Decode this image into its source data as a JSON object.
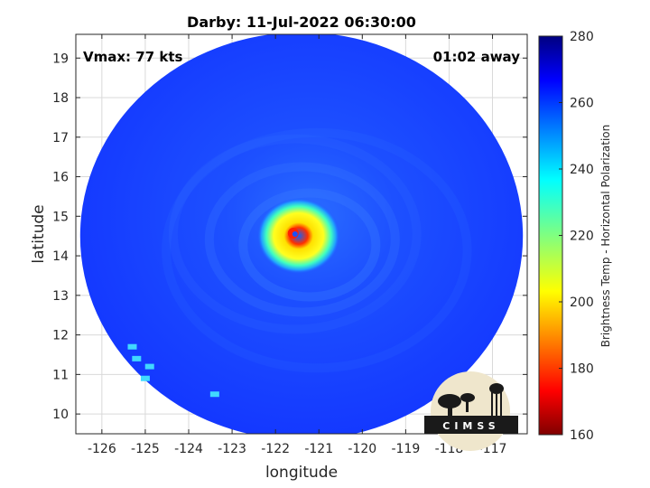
{
  "chart_data": {
    "type": "heatmap",
    "title": "Darby: 11-Jul-2022 06:30:00",
    "xlabel": "longitude",
    "ylabel": "latitude",
    "xlim": [
      -126.6,
      -116.2
    ],
    "ylim": [
      9.5,
      19.6
    ],
    "xticks": [
      -126,
      -125,
      -124,
      -123,
      -122,
      -121,
      -120,
      -119,
      -118,
      -117
    ],
    "yticks": [
      10,
      11,
      12,
      13,
      14,
      15,
      16,
      17,
      18,
      19
    ],
    "grid": true,
    "annotations": {
      "left": "Vmax: 77 kts",
      "right": "01:02 away"
    },
    "colorbar": {
      "label": "Brightness Temp - Horizontal Polarization",
      "range": [
        160,
        280
      ],
      "ticks": [
        160,
        180,
        200,
        220,
        240,
        260,
        280
      ],
      "colormap": "jet"
    },
    "swath": {
      "center_lon": -121.4,
      "center_lat": 14.5,
      "background_value": 262,
      "eye_center_lon": -121.55,
      "eye_center_lat": 14.55,
      "eye_value": 248,
      "eyewall_min_value": 205,
      "eye_hot_spot_value": 182
    },
    "logo_text": "CIMSS"
  },
  "colors": {
    "axis": "#262626",
    "grid": "#d9d9d9",
    "swath_background": "#1a46ff"
  }
}
